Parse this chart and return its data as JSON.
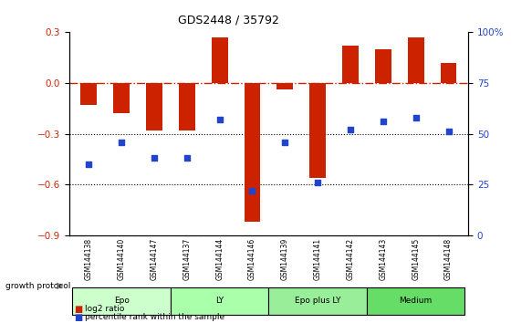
{
  "title": "GDS2448 / 35792",
  "samples": [
    "GSM144138",
    "GSM144140",
    "GSM144147",
    "GSM144137",
    "GSM144144",
    "GSM144146",
    "GSM144139",
    "GSM144141",
    "GSM144142",
    "GSM144143",
    "GSM144145",
    "GSM144148"
  ],
  "log2_ratio": [
    -0.13,
    -0.18,
    -0.28,
    -0.28,
    0.27,
    -0.82,
    -0.04,
    -0.56,
    0.22,
    0.2,
    0.27,
    0.12
  ],
  "percentile_rank": [
    35,
    46,
    38,
    38,
    57,
    22,
    46,
    26,
    52,
    56,
    58,
    51
  ],
  "groups": [
    {
      "label": "Epo",
      "start": 0,
      "end": 3,
      "color": "#ccffcc"
    },
    {
      "label": "LY",
      "start": 3,
      "end": 6,
      "color": "#aaffaa"
    },
    {
      "label": "Epo plus LY",
      "start": 6,
      "end": 9,
      "color": "#99ee99"
    },
    {
      "label": "Medium",
      "start": 9,
      "end": 12,
      "color": "#66dd66"
    }
  ],
  "bar_color": "#cc2200",
  "dot_color": "#2244cc",
  "hline_color": "#cc2200",
  "dotline_colors": [
    "#000000",
    "#000000"
  ],
  "ylim_left": [
    -0.9,
    0.3
  ],
  "ylim_right": [
    0,
    100
  ],
  "yticks_left": [
    -0.9,
    -0.6,
    -0.3,
    0.0,
    0.3
  ],
  "yticks_right": [
    0,
    25,
    50,
    75,
    100
  ],
  "bar_width": 0.5,
  "background_color": "#ffffff",
  "group_row_color": "#dddddd",
  "growth_protocol_label": "growth protocol"
}
